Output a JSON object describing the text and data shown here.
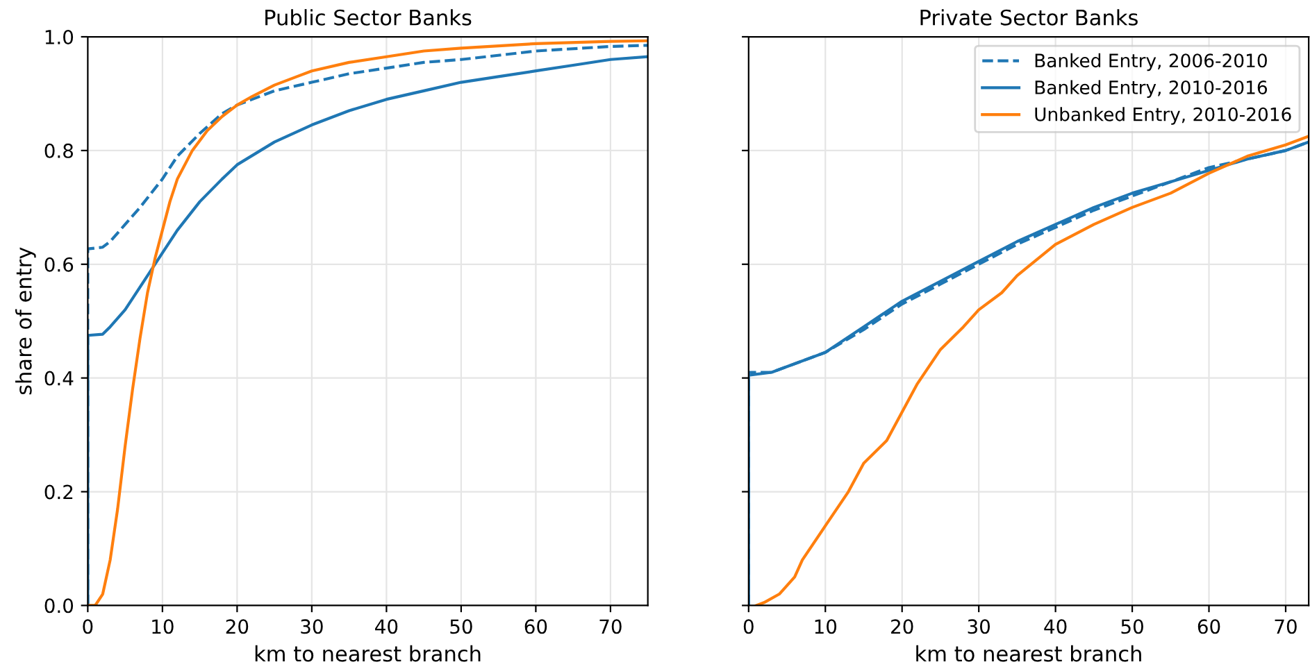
{
  "chart_data": [
    {
      "type": "line",
      "title": "Public Sector Banks",
      "xlabel": "km to nearest branch",
      "ylabel": "share of entry",
      "xlim": [
        0,
        75
      ],
      "ylim": [
        0,
        1.0
      ],
      "xticks": [
        0,
        10,
        20,
        30,
        40,
        50,
        60,
        70
      ],
      "yticks": [
        {
          "value": 0,
          "label": "0.0"
        },
        0.2,
        0.4,
        0.6,
        0.8,
        {
          "value": 1,
          "label": "1.0"
        }
      ],
      "grid": true,
      "series": [
        {
          "color": "#1f77b4",
          "line_style": "dashed",
          "x": [
            0,
            0,
            2,
            3,
            5,
            7,
            10,
            12,
            15,
            18,
            20,
            25,
            30,
            35,
            40,
            45,
            50,
            60,
            70,
            75
          ],
          "values": [
            0,
            0.627,
            0.63,
            0.64,
            0.67,
            0.7,
            0.75,
            0.79,
            0.83,
            0.865,
            0.88,
            0.905,
            0.92,
            0.935,
            0.945,
            0.955,
            0.96,
            0.975,
            0.983,
            0.985
          ]
        },
        {
          "color": "#1f77b4",
          "line_style": "solid",
          "x": [
            0,
            0,
            2,
            3,
            5,
            7,
            10,
            12,
            15,
            18,
            20,
            25,
            30,
            35,
            40,
            45,
            50,
            55,
            60,
            65,
            70,
            75
          ],
          "values": [
            0,
            0.475,
            0.477,
            0.49,
            0.52,
            0.56,
            0.62,
            0.66,
            0.71,
            0.75,
            0.775,
            0.815,
            0.845,
            0.87,
            0.89,
            0.905,
            0.92,
            0.93,
            0.94,
            0.95,
            0.96,
            0.965
          ]
        },
        {
          "color": "#ff7f0e",
          "line_style": "solid",
          "x": [
            0,
            1,
            2,
            3,
            4,
            5,
            6,
            7,
            8,
            9,
            10,
            11,
            12,
            14,
            16,
            18,
            20,
            22,
            25,
            28,
            30,
            35,
            40,
            45,
            50,
            60,
            70,
            75
          ],
          "values": [
            0,
            0,
            0.02,
            0.08,
            0.17,
            0.28,
            0.38,
            0.47,
            0.55,
            0.61,
            0.66,
            0.71,
            0.75,
            0.8,
            0.835,
            0.86,
            0.88,
            0.895,
            0.915,
            0.93,
            0.94,
            0.955,
            0.965,
            0.975,
            0.98,
            0.988,
            0.992,
            0.993
          ]
        }
      ]
    },
    {
      "type": "line",
      "title": "Private Sector Banks",
      "xlabel": "km to nearest branch",
      "xlim": [
        0,
        73
      ],
      "ylim": [
        0,
        1.0
      ],
      "xticks": [
        0,
        10,
        20,
        30,
        40,
        50,
        60,
        70
      ],
      "yticks": [
        0,
        0.2,
        0.4,
        0.6,
        0.8,
        1.0
      ],
      "tick_labels": "x",
      "grid": true,
      "legend": "top right",
      "series": [
        {
          "name": "Banked Entry, 2006-2010",
          "color": "#1f77b4",
          "line_style": "dashed",
          "x": [
            0,
            0,
            3,
            5,
            8,
            10,
            15,
            20,
            25,
            30,
            35,
            40,
            45,
            50,
            55,
            60,
            65,
            70,
            73
          ],
          "values": [
            0,
            0.41,
            0.41,
            0.42,
            0.435,
            0.445,
            0.485,
            0.53,
            0.565,
            0.6,
            0.635,
            0.665,
            0.695,
            0.72,
            0.745,
            0.77,
            0.785,
            0.8,
            0.815
          ]
        },
        {
          "name": "Banked Entry, 2010-2016",
          "color": "#1f77b4",
          "line_style": "solid",
          "x": [
            0,
            0,
            3,
            5,
            10,
            15,
            20,
            25,
            30,
            35,
            40,
            45,
            50,
            55,
            60,
            65,
            70,
            73
          ],
          "values": [
            0,
            0.405,
            0.41,
            0.42,
            0.445,
            0.49,
            0.535,
            0.57,
            0.605,
            0.64,
            0.67,
            0.7,
            0.725,
            0.745,
            0.765,
            0.785,
            0.8,
            0.815
          ]
        },
        {
          "name": "Unbanked Entry, 2010-2016",
          "color": "#ff7f0e",
          "line_style": "solid",
          "x": [
            1,
            2,
            4,
            6,
            7,
            10,
            13,
            15,
            18,
            20,
            22,
            25,
            28,
            30,
            33,
            35,
            40,
            45,
            50,
            55,
            60,
            65,
            70,
            73
          ],
          "values": [
            0,
            0.005,
            0.02,
            0.05,
            0.08,
            0.14,
            0.2,
            0.25,
            0.29,
            0.34,
            0.39,
            0.45,
            0.49,
            0.52,
            0.55,
            0.58,
            0.635,
            0.67,
            0.7,
            0.725,
            0.76,
            0.79,
            0.81,
            0.825
          ]
        }
      ]
    }
  ]
}
